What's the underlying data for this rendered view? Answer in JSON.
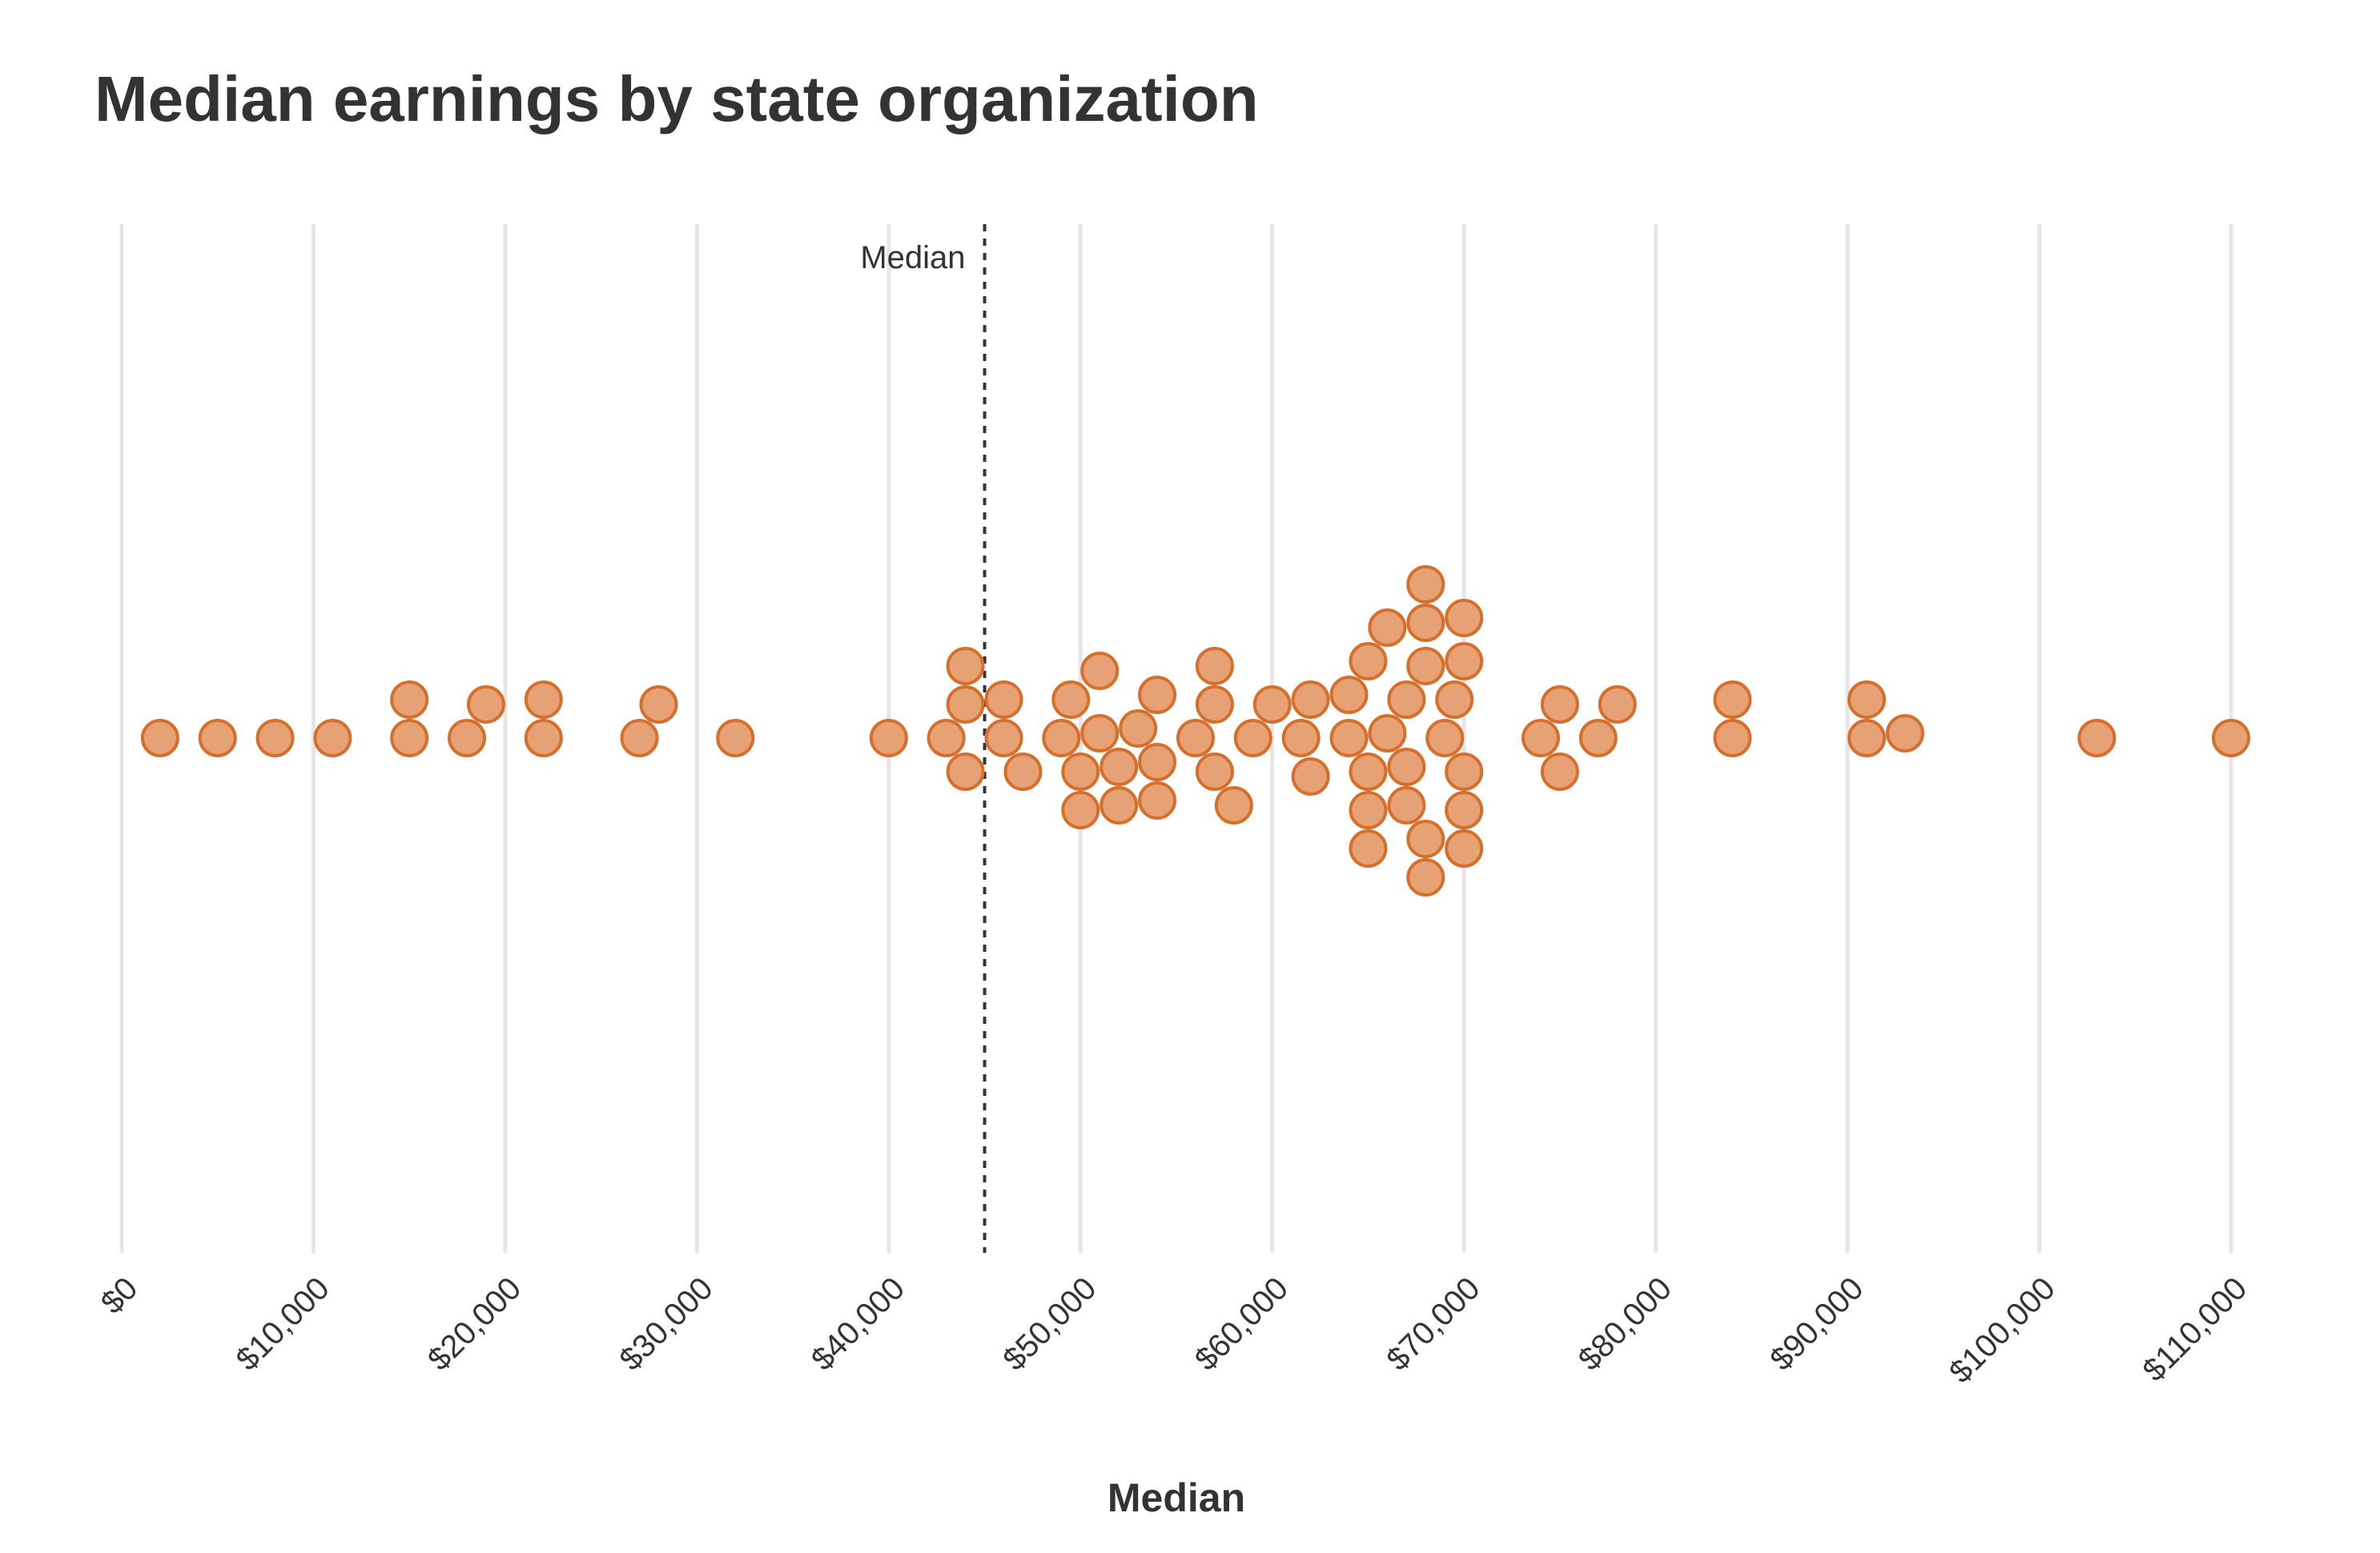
{
  "chart_data": {
    "type": "scatter",
    "title": "Median earnings by state organization",
    "xlabel": "Median",
    "xlim": [
      0,
      110000
    ],
    "x_ticks": [
      0,
      10000,
      20000,
      30000,
      40000,
      50000,
      60000,
      70000,
      80000,
      90000,
      100000,
      110000
    ],
    "x_tick_labels": [
      "$0",
      "$10,000",
      "$20,000",
      "$30,000",
      "$40,000",
      "$50,000",
      "$60,000",
      "$70,000",
      "$80,000",
      "$90,000",
      "$100,000",
      "$110,000"
    ],
    "grid": true,
    "reference_line": {
      "label": "Median",
      "value": 45000
    },
    "colors": {
      "fill": "#e6a274",
      "stroke": "#d66f2c",
      "grid": "#e6e6e6",
      "text": "#333333"
    },
    "values": [
      2000,
      5000,
      8000,
      11000,
      15000,
      15000,
      18000,
      19000,
      22000,
      22000,
      27000,
      28000,
      32000,
      40000,
      43000,
      44000,
      44000,
      44000,
      46000,
      46000,
      47000,
      49000,
      49500,
      50000,
      50000,
      51000,
      51000,
      52000,
      52000,
      53000,
      54000,
      54000,
      54000,
      56000,
      57000,
      57000,
      57000,
      58000,
      59000,
      60000,
      61500,
      62000,
      62000,
      64000,
      64000,
      65000,
      65000,
      65000,
      65000,
      66000,
      66000,
      67000,
      67000,
      67000,
      68000,
      68000,
      68000,
      68000,
      68000,
      69000,
      69500,
      70000,
      70000,
      70000,
      70000,
      70000,
      74000,
      75000,
      75000,
      77000,
      78000,
      84000,
      84000,
      91000,
      91000,
      93000,
      103000,
      110000
    ]
  }
}
